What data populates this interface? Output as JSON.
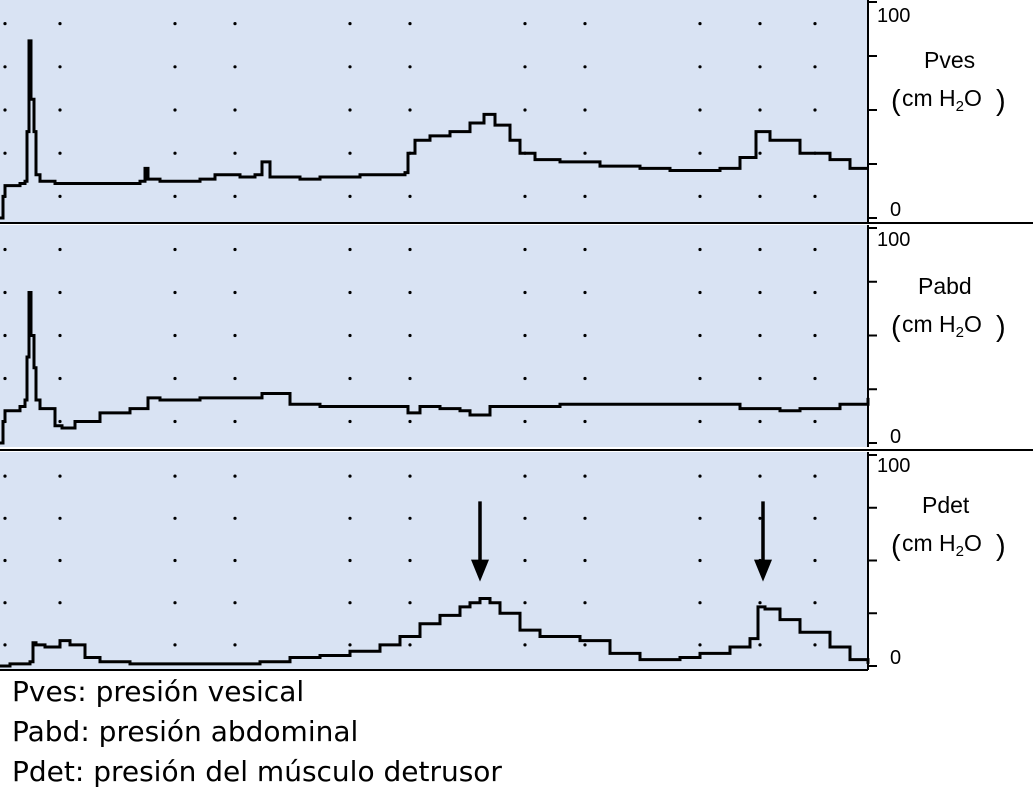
{
  "colors": {
    "panel_background": "#d9e3f3",
    "trace": "#000000",
    "axis": "#000000",
    "legend_text": "#000000"
  },
  "chart_data": [
    {
      "type": "line",
      "panel": "Pves",
      "label": "Pves",
      "unit_open": "(",
      "unit_base": "cm H",
      "unit_sub": "2",
      "unit_tail": "O",
      "unit_close": ")",
      "ylim": [
        0,
        100
      ],
      "yticks": [
        0,
        25,
        50,
        75,
        100
      ],
      "ytick_labels": [
        "0",
        "100"
      ],
      "grid": "dotted",
      "series": [
        {
          "x": [
            0,
            3,
            5,
            20,
            25,
            27,
            29,
            31,
            34,
            36,
            40,
            55,
            80,
            110,
            140,
            145,
            148,
            160,
            200,
            215,
            240,
            255,
            262,
            270,
            300,
            320,
            360,
            380,
            405,
            408,
            415,
            430,
            450,
            470,
            484,
            495,
            510,
            520,
            535,
            560,
            600,
            640,
            670,
            700,
            720,
            740,
            756,
            770,
            800,
            830,
            850,
            868
          ],
          "y": [
            0,
            10,
            15,
            16,
            17,
            40,
            82,
            55,
            40,
            20,
            17,
            16,
            16,
            16,
            17,
            23,
            18,
            17,
            18,
            20,
            19,
            20,
            26,
            19,
            18,
            19,
            20,
            20,
            21,
            30,
            36,
            38,
            40,
            44,
            48,
            43,
            36,
            30,
            27,
            26,
            24,
            23,
            22,
            22,
            23,
            28,
            40,
            36,
            30,
            27,
            23,
            23
          ]
        }
      ]
    },
    {
      "type": "line",
      "panel": "Pabd",
      "label": "Pabd",
      "unit_open": "(",
      "unit_base": "cm H",
      "unit_sub": "2",
      "unit_tail": "O",
      "unit_close": ")",
      "ylim": [
        0,
        100
      ],
      "yticks": [
        0,
        25,
        50,
        75,
        100
      ],
      "ytick_labels": [
        "0",
        "100"
      ],
      "grid": "dotted",
      "series": [
        {
          "x": [
            0,
            3,
            5,
            20,
            25,
            27,
            29,
            31,
            34,
            36,
            40,
            55,
            62,
            75,
            100,
            130,
            148,
            160,
            200,
            240,
            262,
            290,
            320,
            360,
            400,
            408,
            420,
            440,
            460,
            470,
            490,
            520,
            560,
            600,
            640,
            680,
            700,
            740,
            780,
            800,
            840,
            868
          ],
          "y": [
            0,
            10,
            15,
            17,
            20,
            40,
            70,
            50,
            35,
            20,
            16,
            8,
            7,
            10,
            14,
            16,
            21,
            20,
            21,
            21,
            23,
            18,
            17,
            17,
            17,
            14,
            17,
            16,
            15,
            13,
            17,
            17,
            18,
            18,
            18,
            18,
            18,
            16,
            15,
            16,
            18,
            21
          ]
        }
      ]
    },
    {
      "type": "line",
      "panel": "Pdet",
      "label": "Pdet",
      "unit_open": "(",
      "unit_base": "cm H",
      "unit_sub": "2",
      "unit_tail": "O",
      "unit_close": ")",
      "ylim": [
        0,
        100
      ],
      "yticks": [
        0,
        25,
        50,
        75,
        100
      ],
      "ytick_labels": [
        "0",
        "100"
      ],
      "grid": "dotted",
      "series": [
        {
          "x": [
            0,
            10,
            20,
            30,
            33,
            36,
            45,
            60,
            70,
            85,
            100,
            130,
            200,
            260,
            290,
            320,
            350,
            380,
            400,
            420,
            440,
            460,
            470,
            480,
            490,
            500,
            520,
            540,
            580,
            610,
            640,
            680,
            700,
            730,
            750,
            758,
            765,
            780,
            800,
            830,
            850,
            868
          ],
          "y": [
            0,
            1,
            1,
            2,
            11,
            10,
            9,
            12,
            10,
            4,
            2,
            1,
            1,
            2,
            4,
            5,
            7,
            10,
            14,
            20,
            24,
            28,
            30,
            32,
            30,
            25,
            17,
            14,
            12,
            6,
            3,
            4,
            6,
            9,
            13,
            28,
            27,
            22,
            16,
            9,
            3,
            1
          ]
        }
      ],
      "annotations": [
        {
          "type": "arrow",
          "x": 480,
          "from_y": 78,
          "to_y": 40
        },
        {
          "type": "arrow",
          "x": 763,
          "from_y": 78,
          "to_y": 40
        }
      ]
    }
  ],
  "legend": [
    "Pves: presión vesical",
    "Pabd: presión abdominal",
    "Pdet: presión del músculo detrusor"
  ]
}
